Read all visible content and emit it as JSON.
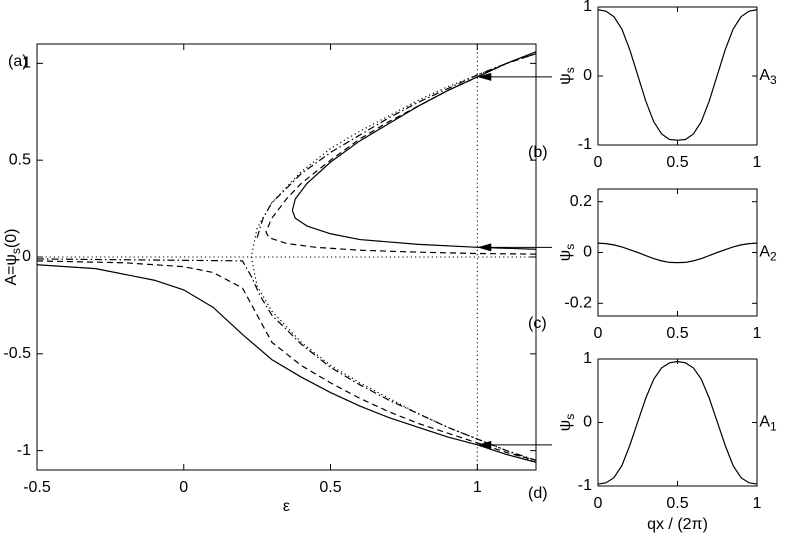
{
  "chart_data": [
    {
      "type": "line",
      "panel_label": "(a)",
      "xlabel": "ε",
      "ylabel": {
        "text": "A=ψ",
        "sub": "s",
        "after": "(0)"
      },
      "xlim": [
        -0.5,
        1.2
      ],
      "ylim": [
        -1.1,
        1.1
      ],
      "xticks": [
        -0.5,
        0,
        0.5,
        1
      ],
      "yticks": [
        -1,
        -0.5,
        0,
        0.5,
        1
      ],
      "hline": 0,
      "vline": 1,
      "arrows": [
        [
          1,
          0.93
        ],
        [
          1,
          0.05
        ],
        [
          1,
          -0.97
        ]
      ],
      "series": [
        {
          "color": "#000000",
          "dash": "solid",
          "x": [
            1.2,
            1.0,
            0.8,
            0.6,
            0.5,
            0.42,
            0.38,
            0.37,
            0.38,
            0.42,
            0.5,
            0.6,
            0.7,
            0.8,
            0.9,
            1.0,
            1.1,
            1.2
          ],
          "values": [
            0.04,
            0.05,
            0.065,
            0.09,
            0.12,
            0.16,
            0.2,
            0.24,
            0.3,
            0.38,
            0.49,
            0.6,
            0.69,
            0.78,
            0.86,
            0.93,
            1.0,
            1.06
          ]
        },
        {
          "color": "#000000",
          "dash": "solid",
          "x": [
            -0.5,
            -0.3,
            -0.1,
            0,
            0.1,
            0.2,
            0.3,
            0.4,
            0.5,
            0.6,
            0.7,
            0.8,
            0.9,
            1.0,
            1.1,
            1.2
          ],
          "values": [
            -0.04,
            -0.06,
            -0.12,
            -0.17,
            -0.26,
            -0.4,
            -0.53,
            -0.62,
            -0.7,
            -0.77,
            -0.83,
            -0.88,
            -0.93,
            -0.97,
            -1.02,
            -1.06
          ]
        },
        {
          "color": "#000000",
          "dash": "dashed",
          "x": [
            1.2,
            1.0,
            0.8,
            0.6,
            0.45,
            0.35,
            0.29,
            0.28,
            0.3,
            0.35,
            0.4,
            0.5,
            0.6,
            0.7,
            0.8,
            0.9,
            1.0,
            1.1,
            1.2
          ],
          "values": [
            0.015,
            0.018,
            0.025,
            0.035,
            0.05,
            0.07,
            0.1,
            0.13,
            0.2,
            0.3,
            0.38,
            0.5,
            0.61,
            0.7,
            0.78,
            0.86,
            0.93,
            1.0,
            1.05
          ]
        },
        {
          "color": "#000000",
          "dash": "dashed",
          "x": [
            -0.5,
            -0.2,
            0,
            0.1,
            0.2,
            0.25,
            0.3,
            0.4,
            0.5,
            0.6,
            0.7,
            0.8,
            0.9,
            1.0,
            1.1,
            1.2
          ],
          "values": [
            -0.02,
            -0.03,
            -0.05,
            -0.08,
            -0.16,
            -0.3,
            -0.44,
            -0.56,
            -0.65,
            -0.73,
            -0.8,
            -0.86,
            -0.91,
            -0.96,
            -1.01,
            -1.05
          ]
        },
        {
          "color": "#000000",
          "dash": "dashdot",
          "x": [
            0.25,
            0.27,
            0.3,
            0.4,
            0.5,
            0.6,
            0.7,
            0.8,
            0.9,
            1.0,
            1.1,
            1.2
          ],
          "values": [
            0.1,
            0.2,
            0.28,
            0.43,
            0.54,
            0.63,
            0.72,
            0.8,
            0.87,
            0.94,
            1.0,
            1.05
          ]
        },
        {
          "color": "#000000",
          "dash": "dashdot",
          "x": [
            -0.5,
            0.2,
            0.23,
            0.26,
            0.3,
            0.4,
            0.5,
            0.6,
            0.7,
            0.8,
            0.9,
            1.0,
            1.1,
            1.2
          ],
          "values": [
            -0.01,
            -0.02,
            -0.1,
            -0.2,
            -0.3,
            -0.45,
            -0.57,
            -0.66,
            -0.74,
            -0.81,
            -0.88,
            -0.94,
            -1.0,
            -1.05
          ]
        },
        {
          "color": "#000000",
          "dash": "dotted",
          "x": [
            1.2,
            1.1,
            1.0,
            0.9,
            0.8,
            0.7,
            0.6,
            0.5,
            0.4,
            0.3,
            0.25,
            0.23,
            0.25,
            0.3,
            0.4,
            0.5,
            0.6,
            0.7,
            0.8,
            0.9,
            1.0,
            1.1,
            1.2
          ],
          "values": [
            -1.06,
            -1.0,
            -0.94,
            -0.88,
            -0.81,
            -0.73,
            -0.65,
            -0.56,
            -0.44,
            -0.28,
            -0.15,
            0,
            0.15,
            0.28,
            0.44,
            0.56,
            0.65,
            0.73,
            0.81,
            0.88,
            0.94,
            1.0,
            1.06
          ]
        }
      ]
    },
    {
      "type": "line",
      "panel_label": "(b)",
      "ylabel": {
        "text": "ψ",
        "sub": "s"
      },
      "right_label": {
        "text": "A",
        "sub": "3"
      },
      "xlim": [
        0,
        1
      ],
      "ylim": [
        -1,
        1
      ],
      "xticks": [
        0,
        0.5,
        1
      ],
      "yticks": [
        -1,
        0,
        1
      ],
      "series": [
        {
          "color": "#000000",
          "dash": "solid",
          "x": [
            0,
            0.05,
            0.1,
            0.15,
            0.2,
            0.25,
            0.3,
            0.35,
            0.4,
            0.45,
            0.5,
            0.55,
            0.6,
            0.65,
            0.7,
            0.75,
            0.8,
            0.85,
            0.9,
            0.95,
            1
          ],
          "values": [
            0.96,
            0.94,
            0.86,
            0.68,
            0.38,
            0.01,
            -0.36,
            -0.66,
            -0.84,
            -0.92,
            -0.93,
            -0.92,
            -0.84,
            -0.66,
            -0.36,
            0.01,
            0.38,
            0.68,
            0.86,
            0.94,
            0.96
          ]
        }
      ]
    },
    {
      "type": "line",
      "panel_label": "(c)",
      "ylabel": {
        "text": "ψ",
        "sub": "s"
      },
      "right_label": {
        "text": "A",
        "sub": "2"
      },
      "xlim": [
        0,
        1
      ],
      "ylim": [
        -0.25,
        0.25
      ],
      "xticks": [
        0,
        0.5,
        1
      ],
      "yticks": [
        -0.2,
        0,
        0.2
      ],
      "series": [
        {
          "color": "#000000",
          "dash": "solid",
          "x": [
            0,
            0.05,
            0.1,
            0.15,
            0.2,
            0.25,
            0.3,
            0.35,
            0.4,
            0.45,
            0.5,
            0.55,
            0.6,
            0.65,
            0.7,
            0.75,
            0.8,
            0.85,
            0.9,
            0.95,
            1
          ],
          "values": [
            0.037,
            0.035,
            0.03,
            0.022,
            0.011,
            0,
            -0.012,
            -0.024,
            -0.033,
            -0.039,
            -0.04,
            -0.039,
            -0.033,
            -0.024,
            -0.012,
            0,
            0.011,
            0.022,
            0.03,
            0.035,
            0.037
          ]
        }
      ]
    },
    {
      "type": "line",
      "panel_label": "(d)",
      "ylabel": {
        "text": "ψ",
        "sub": "s"
      },
      "right_label": {
        "text": "A",
        "sub": "1"
      },
      "xlabel": "qx / (2π)",
      "xlim": [
        0,
        1
      ],
      "ylim": [
        -1,
        1
      ],
      "xticks": [
        0,
        0.5,
        1
      ],
      "yticks": [
        -1,
        0,
        1
      ],
      "series": [
        {
          "color": "#000000",
          "dash": "solid",
          "x": [
            0,
            0.05,
            0.1,
            0.15,
            0.2,
            0.25,
            0.3,
            0.35,
            0.4,
            0.45,
            0.5,
            0.55,
            0.6,
            0.65,
            0.7,
            0.75,
            0.8,
            0.85,
            0.9,
            0.95,
            1
          ],
          "values": [
            -0.97,
            -0.95,
            -0.87,
            -0.68,
            -0.36,
            0.01,
            0.38,
            0.68,
            0.86,
            0.94,
            0.96,
            0.94,
            0.86,
            0.68,
            0.38,
            0.01,
            -0.36,
            -0.68,
            -0.87,
            -0.95,
            -0.97
          ]
        }
      ]
    }
  ]
}
